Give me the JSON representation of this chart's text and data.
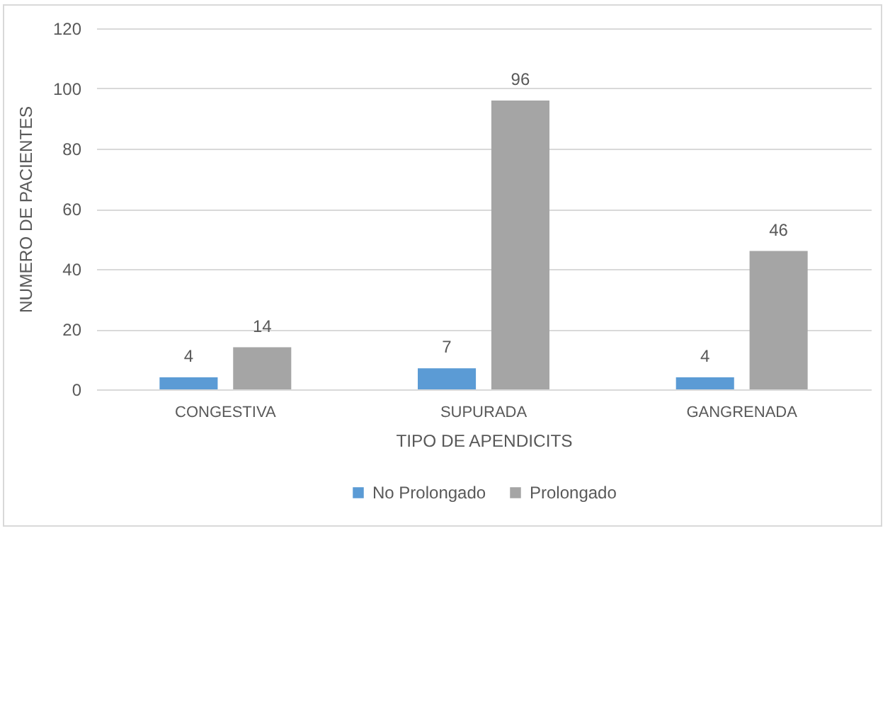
{
  "chart_data": {
    "type": "bar",
    "xlabel": "TIPO DE APENDICITS",
    "ylabel": "NUMERO DE PACIENTES",
    "categories": [
      "CONGESTIVA",
      "SUPURADA",
      "GANGRENADA"
    ],
    "series": [
      {
        "name": "No Prolongado",
        "color": "#5b9bd5",
        "values": [
          4,
          7,
          4
        ]
      },
      {
        "name": "Prolongado",
        "color": "#a5a5a5",
        "values": [
          14,
          96,
          46
        ]
      }
    ],
    "ylim": [
      0,
      120
    ],
    "yticks": [
      0,
      20,
      40,
      60,
      80,
      100,
      120
    ],
    "grid": "y",
    "legend": "bottom",
    "data_labels": true
  }
}
